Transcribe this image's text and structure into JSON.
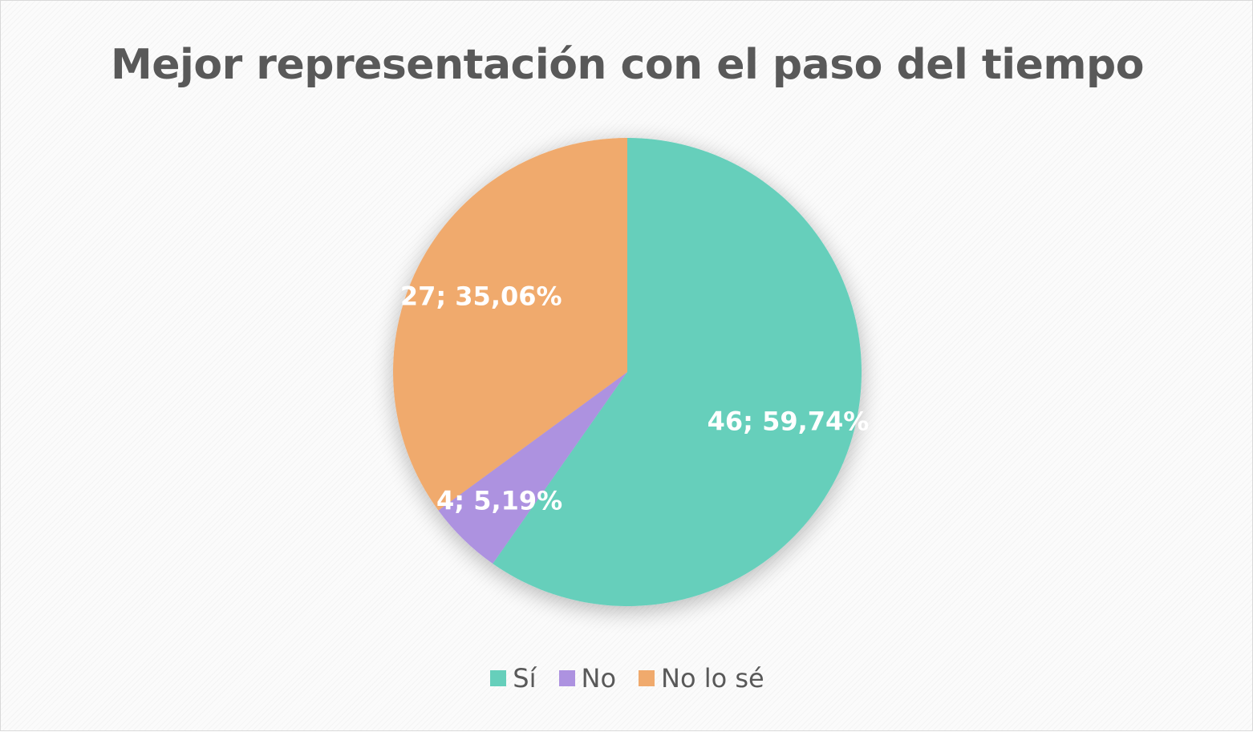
{
  "chart_data": {
    "type": "pie",
    "title": "Mejor representación con el paso del tiempo",
    "categories": [
      "Sí",
      "No",
      "No lo sé"
    ],
    "values": [
      46,
      4,
      27
    ],
    "percentages": [
      59.74,
      5.19,
      35.06
    ],
    "data_labels": [
      "46; 59,74%",
      "4; 5,19%",
      "27; 35,06%"
    ],
    "colors": [
      "#66CFBB",
      "#AD92E0",
      "#F0AA6D"
    ],
    "legend_position": "bottom"
  }
}
